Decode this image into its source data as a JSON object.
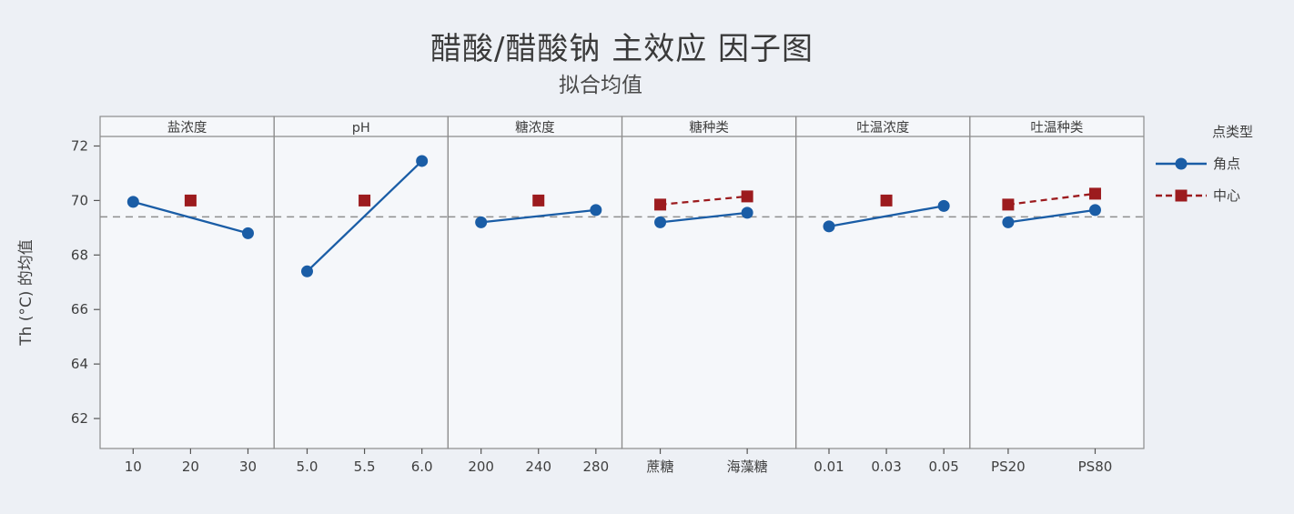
{
  "colors": {
    "background": "#edf0f5",
    "panel_background": "#f5f7fa",
    "panel_border": "#8c8c8c",
    "reference_line": "#8f8f8f",
    "text": "#3f3f3f",
    "corner_series": "#1a5da6",
    "center_series": "#9c1b1e"
  },
  "chart_data": {
    "type": "line",
    "title": "醋酸/醋酸钠 主效应 因子图",
    "subtitle": "拟合均值",
    "ylabel": "Th (°C) 的均值",
    "yticks": [
      62,
      64,
      66,
      68,
      70,
      72
    ],
    "ylim": [
      60.9,
      72.35
    ],
    "grid": "off",
    "reference_mean": 69.4,
    "legend_title": "点类型",
    "legend_position": "right",
    "series_defs": [
      {
        "name": "角点",
        "color": "#1a5da6",
        "marker": "circle",
        "line": "solid"
      },
      {
        "name": "中心",
        "color": "#9c1b1e",
        "marker": "square",
        "line": "dashed"
      }
    ],
    "panels": [
      {
        "factor": "盐浓度",
        "ticks": [
          "10",
          "20",
          "30"
        ],
        "series": [
          {
            "x": [
              0,
              2
            ],
            "y": [
              69.95,
              68.8
            ]
          },
          {
            "x": [
              1
            ],
            "y": [
              70.0
            ]
          }
        ]
      },
      {
        "factor": "pH",
        "ticks": [
          "5.0",
          "5.5",
          "6.0"
        ],
        "series": [
          {
            "x": [
              0,
              2
            ],
            "y": [
              67.4,
              71.45
            ]
          },
          {
            "x": [
              1
            ],
            "y": [
              70.0
            ]
          }
        ]
      },
      {
        "factor": "糖浓度",
        "ticks": [
          "200",
          "240",
          "280"
        ],
        "series": [
          {
            "x": [
              0,
              2
            ],
            "y": [
              69.2,
              69.65
            ]
          },
          {
            "x": [
              1
            ],
            "y": [
              70.0
            ]
          }
        ]
      },
      {
        "factor": "糖种类",
        "ticks": [
          "蔗糖",
          "海藻糖"
        ],
        "series": [
          {
            "x": [
              0,
              1
            ],
            "y": [
              69.2,
              69.55
            ]
          },
          {
            "x": [
              0,
              1
            ],
            "y": [
              69.85,
              70.15
            ]
          }
        ]
      },
      {
        "factor": "吐温浓度",
        "ticks": [
          "0.01",
          "0.03",
          "0.05"
        ],
        "series": [
          {
            "x": [
              0,
              2
            ],
            "y": [
              69.05,
              69.8
            ]
          },
          {
            "x": [
              1
            ],
            "y": [
              70.0
            ]
          }
        ]
      },
      {
        "factor": "吐温种类",
        "ticks": [
          "PS20",
          "PS80"
        ],
        "series": [
          {
            "x": [
              0,
              1
            ],
            "y": [
              69.2,
              69.65
            ]
          },
          {
            "x": [
              0,
              1
            ],
            "y": [
              69.85,
              70.25
            ]
          }
        ]
      }
    ]
  }
}
